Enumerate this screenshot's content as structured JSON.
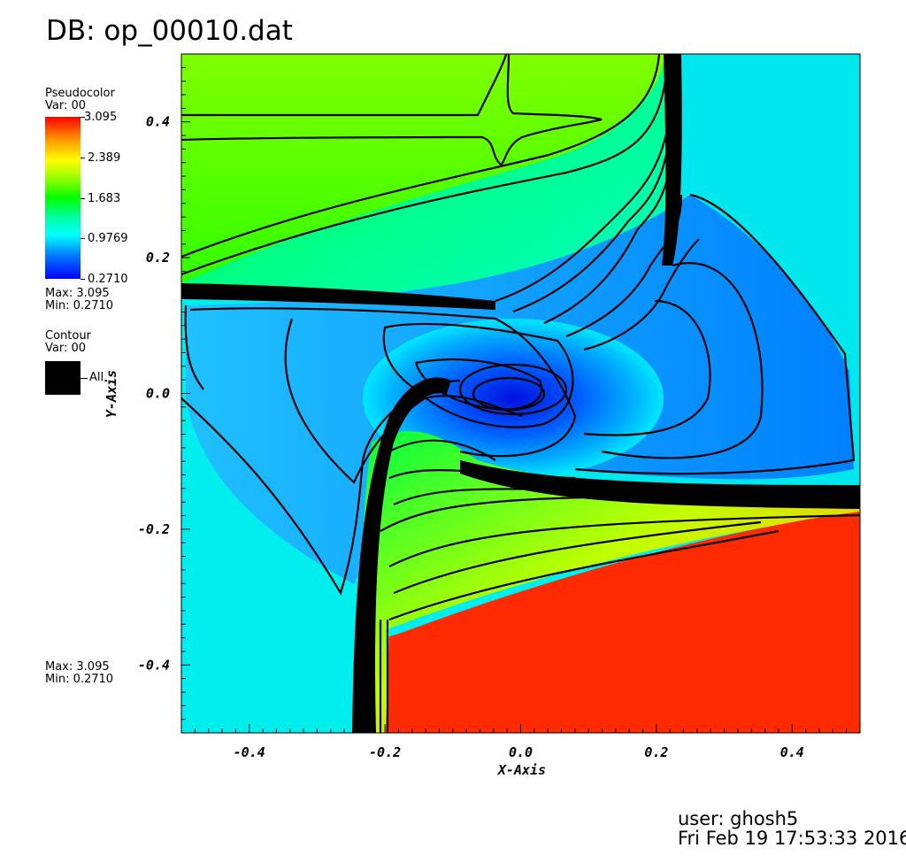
{
  "title": "DB: op_00010.dat",
  "pseudocolor_legend": {
    "title": "Pseudocolor",
    "var": "Var: 00",
    "ticks": [
      "3.095",
      "2.389",
      "1.683",
      "0.9769",
      "0.2710"
    ],
    "max": "Max:  3.095",
    "min": "Min:  0.2710",
    "colors": [
      "#ff0000",
      "#ffff00",
      "#00ff00",
      "#00ffff",
      "#0000ff"
    ]
  },
  "contour_legend": {
    "title": "Contour",
    "var": "Var: 00",
    "label": "All"
  },
  "bottom_minmax": {
    "max": "Max:  3.095",
    "min": "Min:  0.2710"
  },
  "user_info": {
    "user": "user: ghosh5",
    "date": "Fri Feb 19 17:53:33 2016"
  },
  "chart_data": {
    "type": "heatmap",
    "description_of_field": "2D pseudocolor field with overlaid black contour lines of Var 00 on a square domain",
    "xlabel": "X-Axis",
    "ylabel": "Y-Axis",
    "xlim": [
      -0.5,
      0.5
    ],
    "ylim": [
      -0.5,
      0.5
    ],
    "xticks": [
      -0.4,
      -0.2,
      0.0,
      0.2,
      0.4
    ],
    "yticks": [
      -0.4,
      -0.2,
      0.0,
      0.2,
      0.4
    ],
    "xtick_labels": [
      "-0.4",
      "-0.2",
      "0.0",
      "0.2",
      "0.4"
    ],
    "ytick_labels": [
      "-0.4",
      "-0.2",
      "0.0",
      "0.2",
      "0.4"
    ],
    "value_range": [
      0.271,
      3.095
    ],
    "regions": [
      {
        "name": "top-left",
        "approx_value": 1.5,
        "color": "#80ff00"
      },
      {
        "name": "top-right",
        "approx_value": 0.8,
        "color": "#00ffee"
      },
      {
        "name": "bottom-left",
        "approx_value": 0.8,
        "color": "#00ffee"
      },
      {
        "name": "bottom-right",
        "approx_value": 3.0,
        "color": "#ff2000"
      },
      {
        "name": "center-vortex",
        "approx_value": 0.3,
        "color": "#0030ff"
      }
    ]
  }
}
